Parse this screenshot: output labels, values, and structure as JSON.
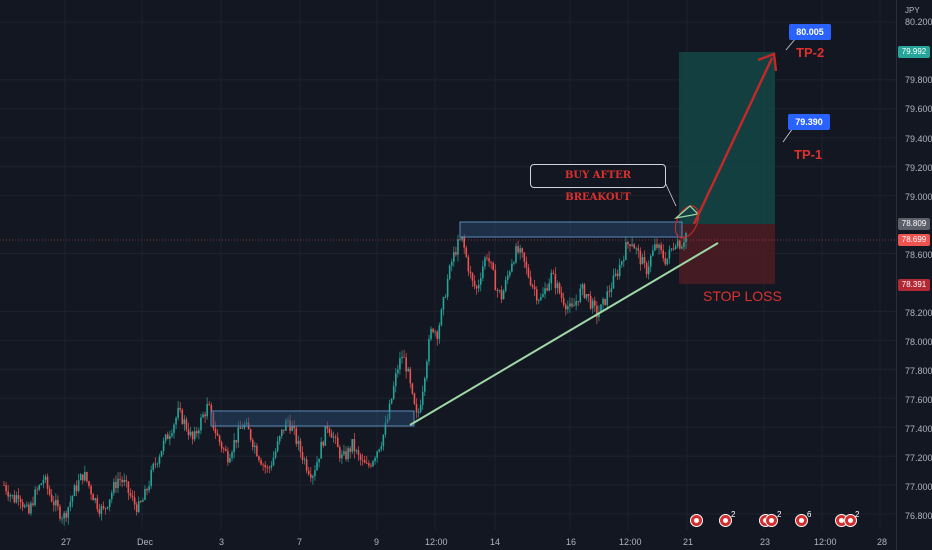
{
  "currency": "JPY",
  "price_axis": {
    "ticks": [
      "80.200",
      "79.800",
      "79.600",
      "79.400",
      "79.200",
      "79.000",
      "78.600",
      "78.200",
      "78.000",
      "77.800",
      "77.600",
      "77.400",
      "77.200",
      "77.000",
      "76.800"
    ],
    "tick_values": [
      80.2,
      79.8,
      79.6,
      79.4,
      79.2,
      79.0,
      78.6,
      78.2,
      78.0,
      77.8,
      77.6,
      77.4,
      77.2,
      77.0,
      76.8
    ]
  },
  "price_tags": [
    {
      "label": "79.992",
      "value": 79.992,
      "color": "#26a69a"
    },
    {
      "label": "78.809",
      "value": 78.809,
      "color": "#5d606b"
    },
    {
      "label": "78.699",
      "value": 78.699,
      "color": "#ef5350"
    },
    {
      "label": "78.391",
      "value": 78.391,
      "color": "#b22833"
    }
  ],
  "time_axis": [
    "27",
    "Dec",
    "3",
    "7",
    "9",
    "12:00",
    "14",
    "16",
    "12:00",
    "21",
    "23",
    "12:00",
    "28"
  ],
  "annotations": {
    "buy_label": "BUY AFTER BREAKOUT",
    "tp1_label": "TP-1",
    "tp2_label": "TP-2",
    "stop_label": "STOP LOSS",
    "tp1_value": "79.390",
    "tp2_value": "80.005"
  },
  "events": [
    {
      "count": ""
    },
    {
      "count": "2"
    },
    {
      "count": "2"
    },
    {
      "count": "6"
    },
    {
      "count": "2"
    }
  ],
  "colors": {
    "background": "#131722",
    "up": "#26a69a",
    "down": "#ef5350",
    "target_zone": "#154745",
    "stop_zone": "#4a1c22",
    "arrow": "#c62828",
    "trendline": "#9fd8a6",
    "range_box": "#5b8ab8"
  },
  "chart_data": {
    "type": "candlestick",
    "symbol_currency": "JPY",
    "ylim": [
      76.75,
      80.25
    ],
    "path_values": [
      77.0,
      76.95,
      76.9,
      76.95,
      76.85,
      76.8,
      76.92,
      76.98,
      77.05,
      76.95,
      76.88,
      76.82,
      76.78,
      76.86,
      76.95,
      77.02,
      77.08,
      77.0,
      76.92,
      76.85,
      76.82,
      76.9,
      76.98,
      77.05,
      77.02,
      76.95,
      76.88,
      76.84,
      76.9,
      77.0,
      77.12,
      77.2,
      77.28,
      77.35,
      77.42,
      77.5,
      77.45,
      77.38,
      77.3,
      77.4,
      77.48,
      77.55,
      77.42,
      77.32,
      77.25,
      77.2,
      77.28,
      77.35,
      77.42,
      77.38,
      77.3,
      77.22,
      77.15,
      77.1,
      77.18,
      77.28,
      77.38,
      77.45,
      77.38,
      77.28,
      77.2,
      77.12,
      77.08,
      77.18,
      77.3,
      77.42,
      77.35,
      77.25,
      77.18,
      77.22,
      77.28,
      77.2,
      77.15,
      77.12,
      77.18,
      77.25,
      77.32,
      77.45,
      77.62,
      77.8,
      77.9,
      77.8,
      77.6,
      77.45,
      77.65,
      77.9,
      78.1,
      78.05,
      78.2,
      78.4,
      78.55,
      78.65,
      78.7,
      78.55,
      78.4,
      78.35,
      78.5,
      78.6,
      78.48,
      78.35,
      78.3,
      78.42,
      78.55,
      78.62,
      78.58,
      78.48,
      78.4,
      78.32,
      78.28,
      78.38,
      78.45,
      78.38,
      78.3,
      78.25,
      78.2,
      78.28,
      78.35,
      78.32,
      78.25,
      78.18,
      78.22,
      78.3,
      78.38,
      78.45,
      78.55,
      78.65,
      78.7,
      78.62,
      78.55,
      78.48,
      78.58,
      78.66,
      78.6,
      78.55,
      78.62,
      78.7,
      78.66,
      78.74
    ]
  }
}
